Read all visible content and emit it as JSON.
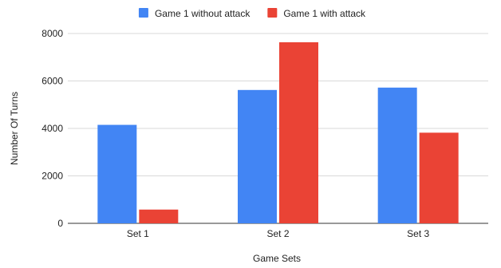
{
  "chart_data": {
    "type": "bar",
    "title": "",
    "xlabel": "Game Sets",
    "ylabel": "Number Of Turns",
    "categories": [
      "Set 1",
      "Set 2",
      "Set 3"
    ],
    "series": [
      {
        "name": "Game 1 without attack",
        "color": "#4285f4",
        "values": [
          4150,
          5620,
          5720
        ]
      },
      {
        "name": "Game 1 with attack",
        "color": "#ea4335",
        "values": [
          580,
          7630,
          3820
        ]
      }
    ],
    "ylim": [
      0,
      8000
    ],
    "yticks": [
      0,
      2000,
      4000,
      6000,
      8000
    ],
    "grid": true,
    "legend": "top-center"
  }
}
